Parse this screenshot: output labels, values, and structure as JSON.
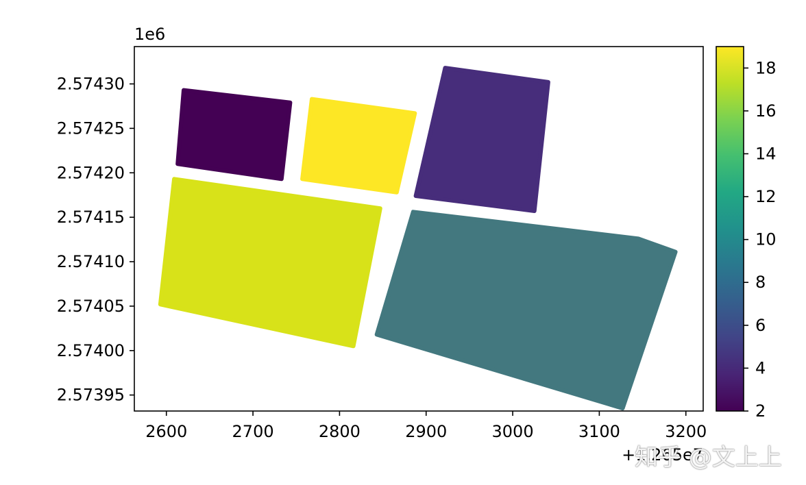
{
  "chart_data": {
    "type": "choropleth",
    "colormap": "viridis",
    "xlim": [
      2563,
      3220
    ],
    "ylim": [
      2573932,
      2574342
    ],
    "x_offset_label": "+1.265e7",
    "y_offset_label": "1e6",
    "x_ticks": [
      {
        "value": 2600,
        "label": "2600"
      },
      {
        "value": 2700,
        "label": "2700"
      },
      {
        "value": 2800,
        "label": "2800"
      },
      {
        "value": 2900,
        "label": "2900"
      },
      {
        "value": 3000,
        "label": "3000"
      },
      {
        "value": 3100,
        "label": "3100"
      },
      {
        "value": 3200,
        "label": "3200"
      }
    ],
    "y_ticks": [
      {
        "value": 2573950,
        "label": "2.57395"
      },
      {
        "value": 2574000,
        "label": "2.57400"
      },
      {
        "value": 2574050,
        "label": "2.57405"
      },
      {
        "value": 2574100,
        "label": "2.57410"
      },
      {
        "value": 2574150,
        "label": "2.57415"
      },
      {
        "value": 2574200,
        "label": "2.57420"
      },
      {
        "value": 2574250,
        "label": "2.57425"
      },
      {
        "value": 2574300,
        "label": "2.57430"
      }
    ],
    "colorbar": {
      "range": [
        2,
        19
      ],
      "ticks": [
        {
          "value": 2,
          "label": "2"
        },
        {
          "value": 4,
          "label": "4"
        },
        {
          "value": 6,
          "label": "6"
        },
        {
          "value": 8,
          "label": "8"
        },
        {
          "value": 10,
          "label": "10"
        },
        {
          "value": 12,
          "label": "12"
        },
        {
          "value": 14,
          "label": "14"
        },
        {
          "value": 16,
          "label": "16"
        },
        {
          "value": 18,
          "label": "18"
        }
      ]
    },
    "polygons": [
      {
        "value": 2,
        "color": "#440154",
        "coords": [
          [
            2620,
            2574293
          ],
          [
            2743,
            2574279
          ],
          [
            2733,
            2574193
          ],
          [
            2613,
            2574210
          ]
        ]
      },
      {
        "value": 19,
        "color": "#fde725",
        "coords": [
          [
            2768,
            2574283
          ],
          [
            2887,
            2574267
          ],
          [
            2866,
            2574178
          ],
          [
            2757,
            2574193
          ]
        ]
      },
      {
        "value": 4,
        "color": "#472d7b",
        "coords": [
          [
            2922,
            2574318
          ],
          [
            3041,
            2574302
          ],
          [
            3025,
            2574157
          ],
          [
            2888,
            2574174
          ]
        ]
      },
      {
        "value": 17,
        "color": "#d8e219",
        "coords": [
          [
            2609,
            2574193
          ],
          [
            2847,
            2574160
          ],
          [
            2816,
            2574005
          ],
          [
            2593,
            2574052
          ]
        ]
      },
      {
        "value": 9,
        "color": "#43787f",
        "coords": [
          [
            2885,
            2574156
          ],
          [
            3145,
            2574126
          ],
          [
            3188,
            2574111
          ],
          [
            3127,
            2573935
          ],
          [
            2843,
            2574018
          ]
        ]
      }
    ]
  },
  "colors": {
    "plot_background": "#ffffff",
    "axis": "#000000"
  },
  "watermark": "知乎 @文上上"
}
